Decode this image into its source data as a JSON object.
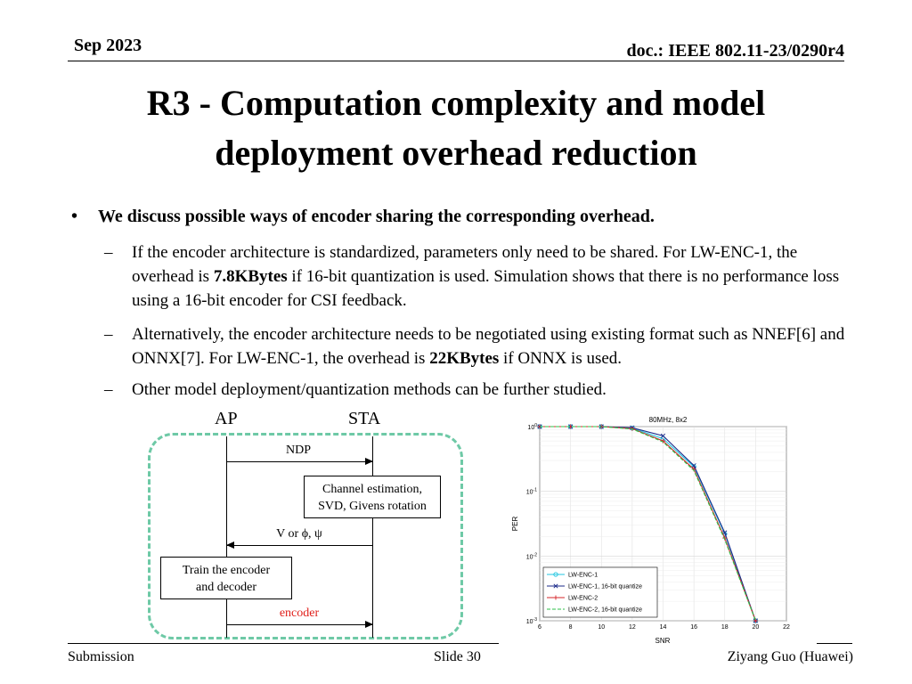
{
  "header": {
    "date": "Sep 2023",
    "doc": "doc.: IEEE 802.11-23/0290r4"
  },
  "title_line1": "R3 - Computation complexity and model",
  "title_line2": "deployment overhead reduction",
  "bullet": {
    "symbol": "•",
    "text": "We discuss possible ways of encoder sharing the corresponding overhead."
  },
  "sub1": {
    "dash": "–",
    "pre": "If the encoder architecture is standardized, parameters only need to be shared. For LW-ENC-1, the overhead is ",
    "bold": "7.8KBytes",
    "post": " if 16-bit quantization is used. Simulation shows that there is no performance loss using a 16-bit encoder for CSI feedback."
  },
  "sub2": {
    "dash": "–",
    "pre": "Alternatively, the encoder architecture needs to be negotiated using existing format such as NNEF[6] and ONNX[7]. For LW-ENC-1, the overhead is ",
    "bold": "22KBytes",
    "post": " if ONNX is used."
  },
  "sub3": {
    "dash": "–",
    "text": "Other model deployment/quantization methods can be further studied."
  },
  "diagram": {
    "ap": "AP",
    "sta": "STA",
    "ndp": "NDP",
    "channel_box_l1": "Channel estimation,",
    "channel_box_l2": "SVD, Givens rotation",
    "feedback": "V or ϕ, ψ",
    "train_box_l1": "Train the encoder",
    "train_box_l2": "and decoder",
    "encoder": "encoder",
    "encoder_color": "#e0201b",
    "border_color": "#6ec9a6"
  },
  "chart_data": {
    "type": "line",
    "title": "80MHz, 8x2",
    "xlabel": "SNR",
    "ylabel": "PER",
    "xlim": [
      6,
      22
    ],
    "xticks": [
      6,
      8,
      10,
      12,
      14,
      16,
      18,
      20,
      22
    ],
    "ylim": [
      0.001,
      1
    ],
    "yscale": "log",
    "ytick_labels": [
      "10^0",
      "10^-1",
      "10^-2",
      "10^-3"
    ],
    "grid": true,
    "legend_position": "bottom-left",
    "x": [
      6,
      8,
      10,
      12,
      14,
      16,
      18,
      20
    ],
    "series": [
      {
        "name": "LW-ENC-1",
        "color": "#21c6e0",
        "marker": "circle",
        "dash": "solid",
        "values": [
          1.0,
          1.0,
          1.0,
          0.95,
          0.65,
          0.24,
          0.022,
          0.001
        ]
      },
      {
        "name": "LW-ENC-1, 16-bit quantize",
        "color": "#1b2a8a",
        "marker": "x",
        "dash": "solid",
        "values": [
          1.0,
          1.0,
          1.0,
          0.96,
          0.72,
          0.25,
          0.023,
          0.001
        ]
      },
      {
        "name": "LW-ENC-2",
        "color": "#d6242a",
        "marker": "plus",
        "dash": "solid",
        "values": [
          1.0,
          1.0,
          1.0,
          0.93,
          0.6,
          0.22,
          0.019,
          0.001
        ]
      },
      {
        "name": "LW-ENC-2, 16-bit quantize",
        "color": "#2ec247",
        "marker": "none",
        "dash": "dashed",
        "values": [
          1.0,
          1.0,
          1.0,
          0.92,
          0.58,
          0.21,
          0.018,
          0.001
        ]
      }
    ]
  },
  "footer": {
    "left": "Submission",
    "center": "Slide 30",
    "right": "Ziyang Guo (Huawei)"
  }
}
